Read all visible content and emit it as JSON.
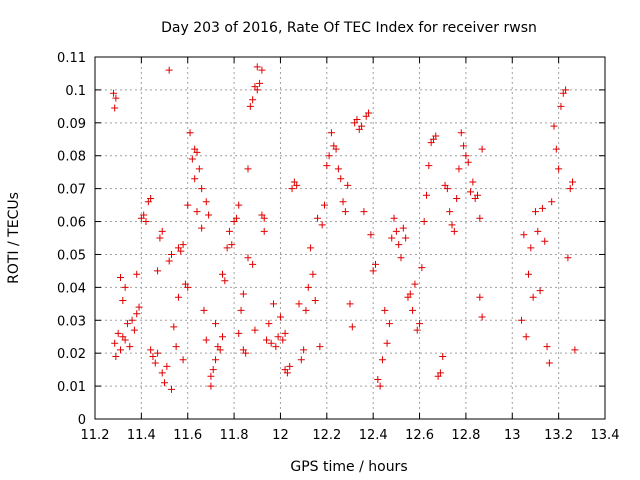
{
  "chart_data": {
    "type": "scatter",
    "title": "Day 203 of 2016, Rate Of TEC Index for receiver rwsn",
    "xlabel": "GPS time / hours",
    "ylabel": "ROTI / TECUs",
    "xlim": [
      11.2,
      13.4
    ],
    "ylim": [
      0,
      0.11
    ],
    "xticks": [
      "11.2",
      "11.4",
      "11.6",
      "11.8",
      "12",
      "12.2",
      "12.4",
      "12.6",
      "12.8",
      "13",
      "13.2",
      "13.4"
    ],
    "yticks": [
      "0",
      "0.01",
      "0.02",
      "0.03",
      "0.04",
      "0.05",
      "0.06",
      "0.07",
      "0.08",
      "0.09",
      "0.1",
      "0.11"
    ],
    "grid": true,
    "marker": "+",
    "series": [
      {
        "name": "rwsn",
        "color": "#e00000",
        "points": [
          [
            11.28,
            0.099
          ],
          [
            11.285,
            0.0945
          ],
          [
            11.29,
            0.0975
          ],
          [
            11.285,
            0.023
          ],
          [
            11.29,
            0.019
          ],
          [
            11.3,
            0.026
          ],
          [
            11.31,
            0.021
          ],
          [
            11.31,
            0.043
          ],
          [
            11.32,
            0.025
          ],
          [
            11.33,
            0.024
          ],
          [
            11.32,
            0.036
          ],
          [
            11.34,
            0.029
          ],
          [
            11.33,
            0.04
          ],
          [
            11.35,
            0.022
          ],
          [
            11.36,
            0.03
          ],
          [
            11.37,
            0.027
          ],
          [
            11.38,
            0.044
          ],
          [
            11.38,
            0.032
          ],
          [
            11.39,
            0.034
          ],
          [
            11.4,
            0.061
          ],
          [
            11.41,
            0.062
          ],
          [
            11.42,
            0.06
          ],
          [
            11.43,
            0.066
          ],
          [
            11.44,
            0.067
          ],
          [
            11.44,
            0.021
          ],
          [
            11.45,
            0.019
          ],
          [
            11.46,
            0.017
          ],
          [
            11.47,
            0.02
          ],
          [
            11.47,
            0.045
          ],
          [
            11.48,
            0.055
          ],
          [
            11.49,
            0.057
          ],
          [
            11.49,
            0.014
          ],
          [
            11.5,
            0.011
          ],
          [
            11.51,
            0.016
          ],
          [
            11.52,
            0.106
          ],
          [
            11.52,
            0.048
          ],
          [
            11.53,
            0.05
          ],
          [
            11.53,
            0.009
          ],
          [
            11.54,
            0.028
          ],
          [
            11.55,
            0.022
          ],
          [
            11.56,
            0.037
          ],
          [
            11.56,
            0.052
          ],
          [
            11.57,
            0.051
          ],
          [
            11.58,
            0.053
          ],
          [
            11.58,
            0.018
          ],
          [
            11.59,
            0.041
          ],
          [
            11.6,
            0.04
          ],
          [
            11.6,
            0.065
          ],
          [
            11.61,
            0.087
          ],
          [
            11.62,
            0.079
          ],
          [
            11.63,
            0.073
          ],
          [
            11.63,
            0.082
          ],
          [
            11.64,
            0.081
          ],
          [
            11.64,
            0.063
          ],
          [
            11.65,
            0.076
          ],
          [
            11.66,
            0.07
          ],
          [
            11.66,
            0.058
          ],
          [
            11.67,
            0.033
          ],
          [
            11.68,
            0.024
          ],
          [
            11.68,
            0.066
          ],
          [
            11.69,
            0.062
          ],
          [
            11.7,
            0.013
          ],
          [
            11.7,
            0.01
          ],
          [
            11.71,
            0.015
          ],
          [
            11.72,
            0.018
          ],
          [
            11.72,
            0.029
          ],
          [
            11.73,
            0.022
          ],
          [
            11.74,
            0.021
          ],
          [
            11.75,
            0.025
          ],
          [
            11.75,
            0.044
          ],
          [
            11.76,
            0.042
          ],
          [
            11.77,
            0.052
          ],
          [
            11.78,
            0.057
          ],
          [
            11.79,
            0.053
          ],
          [
            11.8,
            0.06
          ],
          [
            11.81,
            0.061
          ],
          [
            11.82,
            0.065
          ],
          [
            11.82,
            0.026
          ],
          [
            11.83,
            0.033
          ],
          [
            11.84,
            0.038
          ],
          [
            11.84,
            0.021
          ],
          [
            11.85,
            0.02
          ],
          [
            11.86,
            0.076
          ],
          [
            11.86,
            0.049
          ],
          [
            11.87,
            0.095
          ],
          [
            11.88,
            0.097
          ],
          [
            11.88,
            0.047
          ],
          [
            11.89,
            0.101
          ],
          [
            11.89,
            0.027
          ],
          [
            11.9,
            0.1
          ],
          [
            11.9,
            0.107
          ],
          [
            11.91,
            0.102
          ],
          [
            11.92,
            0.106
          ],
          [
            11.92,
            0.062
          ],
          [
            11.93,
            0.061
          ],
          [
            11.93,
            0.057
          ],
          [
            11.94,
            0.024
          ],
          [
            11.95,
            0.029
          ],
          [
            11.96,
            0.023
          ],
          [
            11.97,
            0.035
          ],
          [
            11.98,
            0.022
          ],
          [
            11.99,
            0.025
          ],
          [
            12.0,
            0.031
          ],
          [
            12.01,
            0.024
          ],
          [
            12.02,
            0.026
          ],
          [
            12.02,
            0.015
          ],
          [
            12.03,
            0.014
          ],
          [
            12.04,
            0.016
          ],
          [
            12.05,
            0.07
          ],
          [
            12.06,
            0.072
          ],
          [
            12.07,
            0.071
          ],
          [
            12.08,
            0.035
          ],
          [
            12.09,
            0.018
          ],
          [
            12.1,
            0.021
          ],
          [
            12.11,
            0.033
          ],
          [
            12.12,
            0.04
          ],
          [
            12.13,
            0.052
          ],
          [
            12.14,
            0.044
          ],
          [
            12.15,
            0.036
          ],
          [
            12.16,
            0.061
          ],
          [
            12.17,
            0.022
          ],
          [
            12.18,
            0.059
          ],
          [
            12.19,
            0.065
          ],
          [
            12.2,
            0.077
          ],
          [
            12.21,
            0.08
          ],
          [
            12.22,
            0.087
          ],
          [
            12.23,
            0.083
          ],
          [
            12.24,
            0.082
          ],
          [
            12.25,
            0.076
          ],
          [
            12.26,
            0.073
          ],
          [
            12.27,
            0.066
          ],
          [
            12.28,
            0.063
          ],
          [
            12.29,
            0.071
          ],
          [
            12.3,
            0.035
          ],
          [
            12.31,
            0.028
          ],
          [
            12.32,
            0.09
          ],
          [
            12.33,
            0.091
          ],
          [
            12.34,
            0.088
          ],
          [
            12.35,
            0.089
          ],
          [
            12.36,
            0.063
          ],
          [
            12.37,
            0.092
          ],
          [
            12.38,
            0.093
          ],
          [
            12.39,
            0.056
          ],
          [
            12.4,
            0.045
          ],
          [
            12.41,
            0.047
          ],
          [
            12.42,
            0.012
          ],
          [
            12.43,
            0.01
          ],
          [
            12.44,
            0.018
          ],
          [
            12.45,
            0.033
          ],
          [
            12.46,
            0.023
          ],
          [
            12.47,
            0.029
          ],
          [
            12.48,
            0.055
          ],
          [
            12.49,
            0.061
          ],
          [
            12.5,
            0.057
          ],
          [
            12.51,
            0.053
          ],
          [
            12.52,
            0.049
          ],
          [
            12.53,
            0.058
          ],
          [
            12.54,
            0.055
          ],
          [
            12.55,
            0.037
          ],
          [
            12.56,
            0.038
          ],
          [
            12.57,
            0.033
          ],
          [
            12.58,
            0.041
          ],
          [
            12.59,
            0.027
          ],
          [
            12.6,
            0.029
          ],
          [
            12.61,
            0.046
          ],
          [
            12.62,
            0.06
          ],
          [
            12.63,
            0.068
          ],
          [
            12.64,
            0.077
          ],
          [
            12.65,
            0.084
          ],
          [
            12.66,
            0.085
          ],
          [
            12.67,
            0.086
          ],
          [
            12.68,
            0.013
          ],
          [
            12.69,
            0.014
          ],
          [
            12.7,
            0.019
          ],
          [
            12.71,
            0.071
          ],
          [
            12.72,
            0.07
          ],
          [
            12.73,
            0.063
          ],
          [
            12.74,
            0.059
          ],
          [
            12.75,
            0.057
          ],
          [
            12.76,
            0.067
          ],
          [
            12.77,
            0.076
          ],
          [
            12.78,
            0.087
          ],
          [
            12.79,
            0.083
          ],
          [
            12.8,
            0.08
          ],
          [
            12.81,
            0.078
          ],
          [
            12.82,
            0.069
          ],
          [
            12.83,
            0.072
          ],
          [
            12.84,
            0.067
          ],
          [
            12.85,
            0.068
          ],
          [
            12.86,
            0.061
          ],
          [
            12.86,
            0.037
          ],
          [
            12.87,
            0.082
          ],
          [
            12.87,
            0.031
          ],
          [
            13.04,
            0.03
          ],
          [
            13.05,
            0.056
          ],
          [
            13.06,
            0.025
          ],
          [
            13.07,
            0.044
          ],
          [
            13.08,
            0.052
          ],
          [
            13.09,
            0.037
          ],
          [
            13.1,
            0.063
          ],
          [
            13.11,
            0.057
          ],
          [
            13.12,
            0.039
          ],
          [
            13.13,
            0.064
          ],
          [
            13.14,
            0.054
          ],
          [
            13.15,
            0.022
          ],
          [
            13.16,
            0.017
          ],
          [
            13.17,
            0.066
          ],
          [
            13.18,
            0.089
          ],
          [
            13.19,
            0.082
          ],
          [
            13.2,
            0.076
          ],
          [
            13.21,
            0.095
          ],
          [
            13.22,
            0.099
          ],
          [
            13.23,
            0.1
          ],
          [
            13.24,
            0.049
          ],
          [
            13.25,
            0.07
          ],
          [
            13.26,
            0.072
          ],
          [
            13.27,
            0.021
          ]
        ]
      }
    ]
  }
}
